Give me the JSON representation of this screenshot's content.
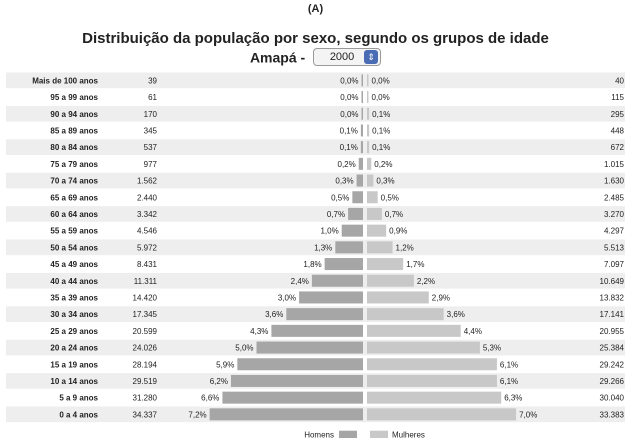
{
  "panel_label": "(A)",
  "controls": {
    "state_label": "Amapá -",
    "year_selected": "2000"
  },
  "chart_data": {
    "type": "bar",
    "title": "Distribuição da população por sexo, segundo os grupos de idade",
    "categories": [
      "Mais de 100 anos",
      "95 a 99 anos",
      "90 a 94 anos",
      "85 a 89 anos",
      "80 a 84 anos",
      "75 a 79 anos",
      "70 a 74 anos",
      "65 a 69 anos",
      "60 a 64 anos",
      "55 a 59 anos",
      "50 a 54 anos",
      "45 a 49 anos",
      "40 a 44 anos",
      "35 a 39 anos",
      "30 a 34 anos",
      "25 a 29 anos",
      "20 a 24 anos",
      "15 a 19 anos",
      "10 a 14 anos",
      "5 a 9 anos",
      "0 a 4 anos"
    ],
    "series": [
      {
        "name": "Homens",
        "color": "#a6a6a6",
        "counts": [
          "39",
          "61",
          "170",
          "345",
          "537",
          "977",
          "1.562",
          "2.440",
          "3.342",
          "4.546",
          "5.972",
          "8.431",
          "11.311",
          "14.420",
          "17.345",
          "20.599",
          "24.026",
          "28.194",
          "29.519",
          "31.280",
          "34.337"
        ],
        "percent_labels": [
          "0,0%",
          "0,0%",
          "0,0%",
          "0,1%",
          "0,1%",
          "0,2%",
          "0,3%",
          "0,5%",
          "0,7%",
          "1,0%",
          "1,3%",
          "1,8%",
          "2,4%",
          "3,0%",
          "3,6%",
          "4,3%",
          "5,0%",
          "5,9%",
          "6,2%",
          "6,6%",
          "7,2%"
        ],
        "percent_values": [
          0.0,
          0.0,
          0.0,
          0.1,
          0.1,
          0.2,
          0.3,
          0.5,
          0.7,
          1.0,
          1.3,
          1.8,
          2.4,
          3.0,
          3.6,
          4.3,
          5.0,
          5.9,
          6.2,
          6.6,
          7.2
        ]
      },
      {
        "name": "Mulheres",
        "color": "#c8c8c8",
        "counts": [
          "40",
          "115",
          "295",
          "448",
          "672",
          "1.015",
          "1.630",
          "2.485",
          "3.270",
          "4.297",
          "5.513",
          "7.097",
          "10.649",
          "13.832",
          "17.141",
          "20.955",
          "25.384",
          "29.242",
          "29.266",
          "30.040",
          "33.383"
        ],
        "percent_labels": [
          "0,0%",
          "0,0%",
          "0,1%",
          "0,1%",
          "0,1%",
          "0,2%",
          "0,3%",
          "0,5%",
          "0,7%",
          "0,9%",
          "1,2%",
          "1,7%",
          "2,2%",
          "2,9%",
          "3,6%",
          "4,4%",
          "5,3%",
          "6,1%",
          "6,1%",
          "6,3%",
          "7,0%"
        ],
        "percent_values": [
          0.0,
          0.0,
          0.1,
          0.1,
          0.1,
          0.2,
          0.3,
          0.5,
          0.7,
          0.9,
          1.2,
          1.7,
          2.2,
          2.9,
          3.6,
          4.4,
          5.3,
          6.1,
          6.1,
          6.3,
          7.0
        ]
      }
    ],
    "legend": [
      "Homens",
      "Mulheres"
    ],
    "legend_position": "bottom-center"
  }
}
